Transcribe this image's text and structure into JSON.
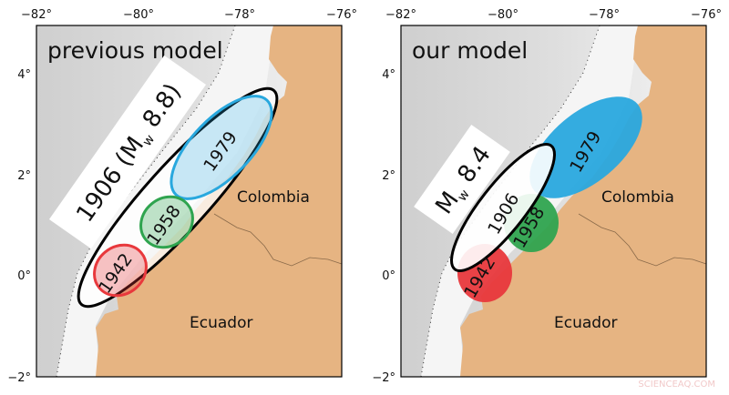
{
  "axes": {
    "lon_ticks": [
      "−82°",
      "−80°",
      "−78°",
      "−76°"
    ],
    "lat_ticks": [
      "4°",
      "2°",
      "0°",
      "−2°"
    ]
  },
  "colors": {
    "land": "#e6b482",
    "ocean": "#d9d9d9",
    "red": "#e8383c",
    "green": "#2fa44f",
    "blue": "#29a8de",
    "outline": "#000000"
  },
  "countries": {
    "colombia": "Colombia",
    "ecuador": "Ecuador"
  },
  "panels": [
    {
      "title": "previous model",
      "big_rupture": {
        "label": "1906 (",
        "m": "M",
        "sub": "w",
        "value": " 8.8)"
      },
      "ruptures": [
        "1942",
        "1958",
        "1979"
      ]
    },
    {
      "title": "our model",
      "big_rupture": {
        "label": "1906",
        "m": "M",
        "sub": "w",
        "value": " 8.4"
      },
      "ruptures": [
        "1942",
        "1958",
        "1979"
      ]
    }
  ],
  "watermark": "SCIENCEAQ.COM"
}
